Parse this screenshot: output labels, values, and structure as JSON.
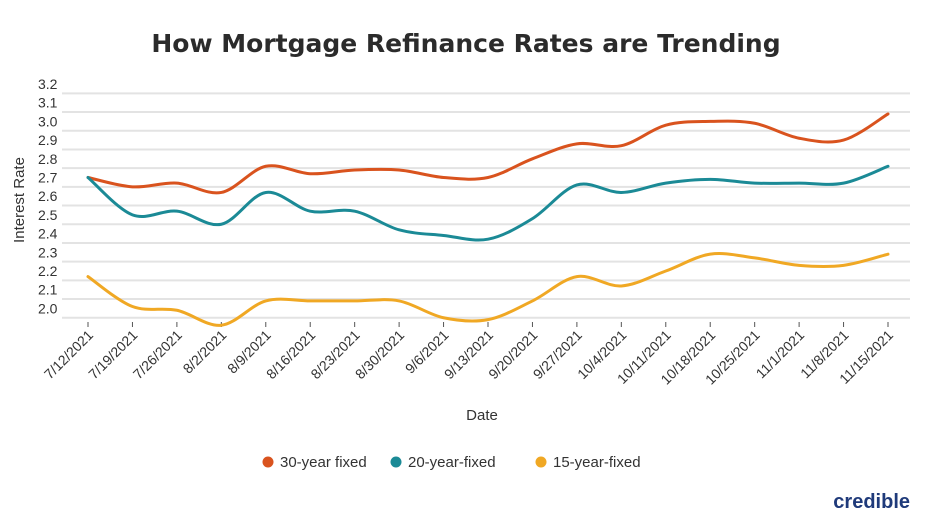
{
  "chart_data": {
    "type": "line",
    "title": "How Mortgage Refinance Rates are Trending",
    "xlabel": "Date",
    "ylabel": "Interest Rate",
    "categories": [
      "7/12/2021",
      "7/19/2021",
      "7/26/2021",
      "8/2/2021",
      "8/9/2021",
      "8/16/2021",
      "8/23/2021",
      "8/30/2021",
      "9/6/2021",
      "9/13/2021",
      "9/20/2021",
      "9/27/2021",
      "10/4/2021",
      "10/11/2021",
      "10/18/2021",
      "10/25/2021",
      "11/1/2021",
      "11/8/2021",
      "11/15/2021"
    ],
    "yticks": [
      "3.2",
      "3.1",
      "3.0",
      "2.9",
      "2.8",
      "2.7",
      "2.6",
      "2.5",
      "2.4",
      "2.3",
      "2.2",
      "2.1",
      "2.0"
    ],
    "ylim": [
      2.0,
      3.2
    ],
    "grid": true,
    "legend_position": "bottom",
    "series": [
      {
        "name": "30-year fixed",
        "color": "#d9531e",
        "values": [
          2.7,
          2.65,
          2.67,
          2.62,
          2.76,
          2.72,
          2.74,
          2.74,
          2.7,
          2.7,
          2.8,
          2.88,
          2.87,
          2.98,
          3.0,
          2.99,
          2.91,
          2.9,
          3.04
        ]
      },
      {
        "name": "20-year-fixed",
        "color": "#1b8a96",
        "values": [
          2.7,
          2.5,
          2.52,
          2.45,
          2.62,
          2.52,
          2.52,
          2.42,
          2.39,
          2.37,
          2.48,
          2.66,
          2.62,
          2.67,
          2.69,
          2.67,
          2.67,
          2.67,
          2.76
        ]
      },
      {
        "name": "15-year-fixed",
        "color": "#f0a824",
        "values": [
          2.17,
          2.01,
          1.99,
          1.91,
          2.04,
          2.04,
          2.04,
          2.04,
          1.95,
          1.94,
          2.04,
          2.17,
          2.12,
          2.2,
          2.29,
          2.27,
          2.23,
          2.23,
          2.29
        ]
      }
    ]
  },
  "branding": {
    "logo_text": "credible"
  }
}
